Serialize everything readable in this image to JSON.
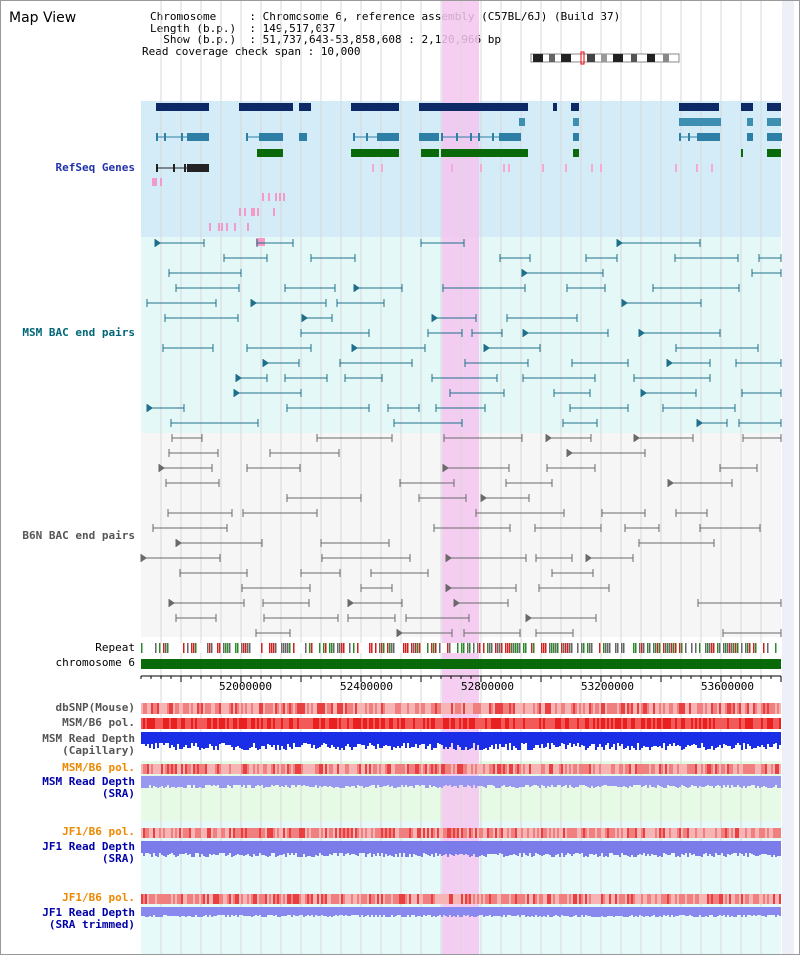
{
  "page": {
    "title": "Map View"
  },
  "header": {
    "rows": [
      "Chromosome     : Chromosome 6, reference assembly (C57BL/6J) (Build 37)",
      "Length (b.p.)  : 149,517,037",
      "  Show (b.p.)  : 51,737,643-53,858,608 : 2,120,966 bp",
      "Read coverage check span : 10,000"
    ]
  },
  "tracks": {
    "refseq": "RefSeq Genes",
    "msm_bac": "MSM BAC end pairs",
    "b6n_bac": "B6N BAC end pairs",
    "repeat": "Repeat",
    "chromosome": "chromosome 6",
    "dbsnp": "dbSNP(Mouse)",
    "msm_pol": "MSM/B6 pol.",
    "msm_depth_cap_1": "MSM Read Depth",
    "msm_depth_cap_2": "(Capillary)",
    "msm_pol_sra": "MSM/B6 pol.",
    "msm_depth_sra_1": "MSM Read Depth",
    "msm_depth_sra_2": "(SRA)",
    "jf1_pol": "JF1/B6 pol.",
    "jf1_depth_1": "JF1 Read Depth",
    "jf1_depth_2": "(SRA)",
    "jf1_pol_2": "JF1/B6 pol.",
    "jf1_trim_1": "JF1 Read Depth",
    "jf1_trim_2": "(SRA trimmed)"
  },
  "axis": {
    "ticks": [
      "52000000",
      "52400000",
      "52800000",
      "53200000",
      "53600000"
    ]
  },
  "colors": {
    "refseq_label": "#2233aa",
    "msm_label": "#006677",
    "b6n_label": "#555555",
    "pol_label": "#ee8800",
    "depth_label": "#0000aa",
    "highlight": "#f5c6f0",
    "chromosome_bar": "#0a6a0a"
  }
}
